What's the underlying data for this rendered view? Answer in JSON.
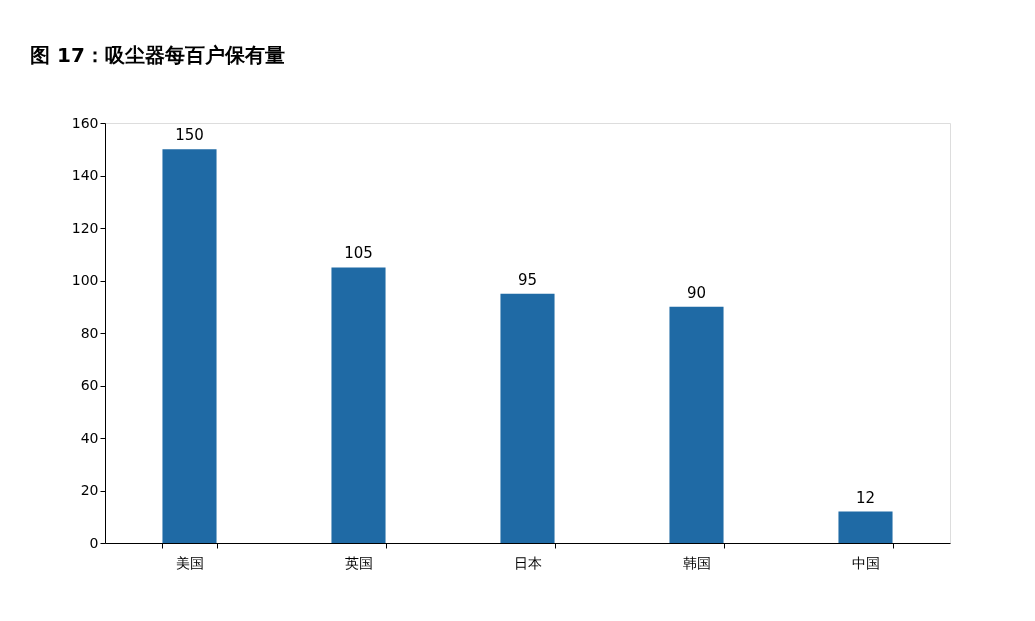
{
  "chart_data": {
    "type": "bar",
    "title": "图 17：吸尘器每百户保有量",
    "categories": [
      "美国",
      "英国",
      "日本",
      "韩国",
      "中国"
    ],
    "values": [
      150,
      105,
      95,
      90,
      12
    ],
    "color": "#1f6aa5",
    "ylim": [
      0,
      160
    ],
    "yticks": [
      0,
      20,
      40,
      60,
      80,
      100,
      120,
      140,
      160
    ],
    "grid": false,
    "data_labels": true
  }
}
